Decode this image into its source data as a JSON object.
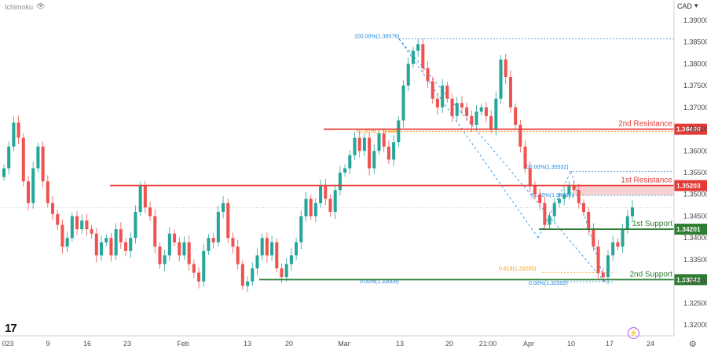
{
  "legend": {
    "indicator": "Ichimoku",
    "eye_icon": "eye-icon"
  },
  "currency": {
    "label": "CAD",
    "chevron": "chevron-down-icon"
  },
  "colors": {
    "up": "#26a69a",
    "down": "#ef5350",
    "resistance": "#e53935",
    "support": "#2e7d32",
    "fib": "#1e88e5",
    "fib_golden": "#f39c12",
    "resistance_zone": "#f8c8c8",
    "support_zone": "#c8e6c9"
  },
  "chart_data": {
    "type": "candlestick",
    "y_range": [
      1.3175,
      1.3925
    ],
    "y_ticks": [
      "1.39000",
      "1.38500",
      "1.38000",
      "1.37500",
      "1.37000",
      "1.36500",
      "1.36000",
      "1.35500",
      "1.35000",
      "1.34500",
      "1.34000",
      "1.33500",
      "1.33000",
      "1.32500",
      "1.32000"
    ],
    "x_ticks": [
      "023",
      "9",
      "16",
      "23",
      "Feb",
      "13",
      "20",
      "Mar",
      "13",
      "20",
      "21:00",
      "Apr",
      "10",
      "17",
      "24"
    ],
    "levels": [
      {
        "label": "2nd Resistance",
        "value": 1.36498,
        "badge": "1.36498",
        "role": "resistance"
      },
      {
        "label": "1st Resistance",
        "value": 1.35203,
        "badge": "1.35203",
        "role": "resistance"
      },
      {
        "label": "1st Support",
        "value": 1.34201,
        "badge": "1.34201",
        "role": "support"
      },
      {
        "label": "2nd Support",
        "value": 1.33042,
        "badge": "1.33042",
        "role": "support"
      }
    ],
    "fib_labels": [
      {
        "text": "100.00%(1.38576)",
        "value": 1.38576
      },
      {
        "text": "61.80%(1.36448)",
        "value": 1.36448
      },
      {
        "text": "0.00%(1.33009)",
        "value": 1.33009
      },
      {
        "text": "100.00%(1.35532)",
        "value": 1.35532
      },
      {
        "text": "61.60%(1.34980)",
        "value": 1.3498
      },
      {
        "text": "0.618(1.33205)",
        "value": 1.33205
      },
      {
        "text": "0.00%(1.32992)",
        "value": 1.32992
      }
    ],
    "series": [
      {
        "closes": [
          1.356,
          1.361,
          1.3665,
          1.363,
          1.353,
          1.348,
          1.356,
          1.361,
          1.353,
          1.348,
          1.3455,
          1.343,
          1.338,
          1.34,
          1.345,
          1.342,
          1.344,
          1.342,
          1.341,
          1.336,
          1.339,
          1.34,
          1.336,
          1.342,
          1.339,
          1.337,
          1.34,
          1.346,
          1.352,
          1.347,
          1.345,
          1.338,
          1.334,
          1.336,
          1.341,
          1.339,
          1.336,
          1.339,
          1.334,
          1.332,
          1.33,
          1.337,
          1.34,
          1.339,
          1.346,
          1.348,
          1.34,
          1.338,
          1.334,
          1.329,
          1.33,
          1.333,
          1.336,
          1.34,
          1.336,
          1.339,
          1.333,
          1.331,
          1.334,
          1.336,
          1.339,
          1.345,
          1.349,
          1.345,
          1.348,
          1.352,
          1.349,
          1.346,
          1.351,
          1.355,
          1.356,
          1.359,
          1.363,
          1.36,
          1.363,
          1.356,
          1.36,
          1.364,
          1.361,
          1.358,
          1.362,
          1.367,
          1.375,
          1.38,
          1.383,
          1.3845,
          1.379,
          1.376,
          1.372,
          1.37,
          1.375,
          1.372,
          1.368,
          1.371,
          1.37,
          1.368,
          1.366,
          1.369,
          1.37,
          1.368,
          1.365,
          1.372,
          1.381,
          1.377,
          1.37,
          1.366,
          1.361,
          1.356,
          1.352,
          1.35,
          1.348,
          1.343,
          1.345,
          1.348,
          1.349,
          1.35,
          1.352,
          1.351,
          1.348,
          1.346,
          1.342,
          1.338,
          1.332,
          1.331,
          1.336,
          1.339,
          1.338,
          1.342,
          1.345,
          1.347
        ],
        "up": [
          true,
          true,
          true,
          false,
          false,
          false,
          true,
          true,
          false,
          false,
          false,
          false,
          false,
          true,
          true,
          false,
          true,
          false,
          false,
          false,
          true,
          true,
          false,
          true,
          false,
          false,
          true,
          true,
          true,
          false,
          false,
          false,
          false,
          true,
          true,
          false,
          false,
          true,
          false,
          false,
          false,
          true,
          true,
          false,
          true,
          true,
          false,
          false,
          false,
          false,
          true,
          true,
          true,
          true,
          false,
          true,
          false,
          false,
          true,
          true,
          true,
          true,
          true,
          false,
          true,
          true,
          false,
          false,
          true,
          true,
          true,
          true,
          true,
          false,
          true,
          false,
          true,
          true,
          false,
          false,
          true,
          true,
          true,
          true,
          true,
          true,
          false,
          false,
          false,
          false,
          true,
          false,
          false,
          true,
          false,
          false,
          false,
          true,
          true,
          false,
          false,
          true,
          true,
          false,
          false,
          false,
          false,
          false,
          false,
          false,
          false,
          false,
          true,
          true,
          true,
          true,
          true,
          false,
          false,
          false,
          false,
          false,
          false,
          false,
          true,
          true,
          false,
          true,
          true,
          true
        ]
      }
    ]
  }
}
